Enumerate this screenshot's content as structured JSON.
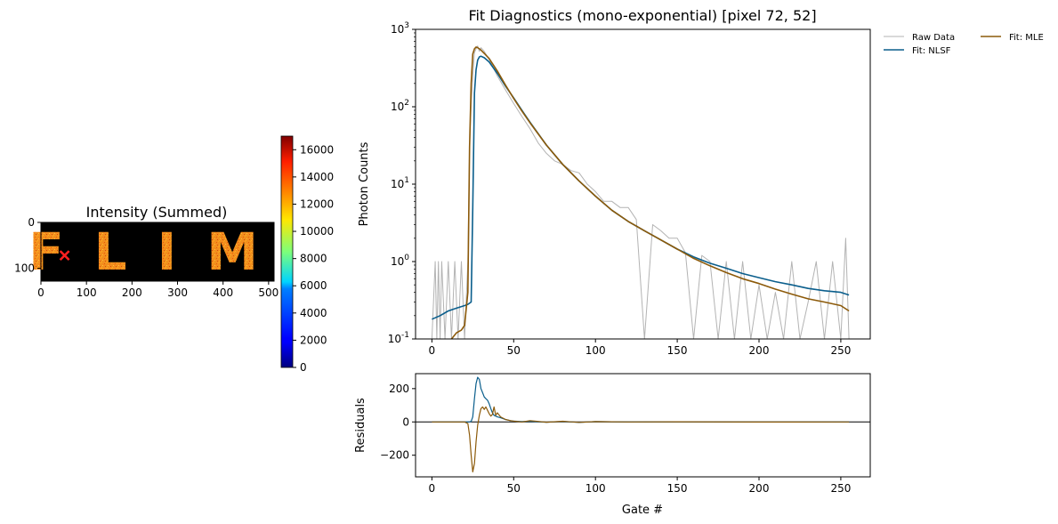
{
  "colors": {
    "raw": "#b3b3b3",
    "nlsf": "#0a5e8c",
    "mle": "#8c5a0a",
    "marker": "#ff2020",
    "letters": "#f08a1c",
    "image_bg": "#000000"
  },
  "chart_data": [
    {
      "type": "heatmap",
      "title": "Intensity (Summed)",
      "image_text": "FLIM",
      "xlim": [
        0,
        512
      ],
      "ylim": [
        128,
        0
      ],
      "xticks": [
        "0",
        "100",
        "200",
        "300",
        "400",
        "500"
      ],
      "yticks": [
        "0",
        "100"
      ],
      "marker": {
        "x": 52,
        "y": 72,
        "symbol": "x"
      },
      "colorbar": {
        "colormap": "jet",
        "range": [
          0,
          17000
        ],
        "ticks": [
          "0",
          "2000",
          "4000",
          "6000",
          "8000",
          "10000",
          "12000",
          "14000",
          "16000"
        ]
      }
    },
    {
      "type": "line",
      "title": "Fit Diagnostics (mono-exponential)  [pixel 72, 52]",
      "xlabel": "",
      "ylabel": "Photon Counts",
      "yscale": "log",
      "xlim": [
        -10,
        268
      ],
      "ylim": [
        0.1,
        1000
      ],
      "xticks": [
        "0",
        "50",
        "100",
        "150",
        "200",
        "250"
      ],
      "yticks": [
        "10^{-1}",
        "10^{0}",
        "10^{1}",
        "10^{2}",
        "10^{3}"
      ],
      "legend": {
        "placement": "outside-top-right",
        "columns": 2
      },
      "series": [
        {
          "name": "Raw Data",
          "x": [
            0,
            2,
            3,
            4,
            5,
            6,
            8,
            10,
            12,
            14,
            16,
            18,
            20,
            22,
            23,
            24,
            25,
            26,
            27,
            28,
            29,
            30,
            32,
            35,
            40,
            45,
            50,
            55,
            60,
            65,
            70,
            75,
            80,
            85,
            90,
            95,
            100,
            105,
            110,
            115,
            120,
            125,
            130,
            135,
            140,
            145,
            150,
            155,
            160,
            165,
            170,
            175,
            180,
            185,
            190,
            195,
            200,
            205,
            210,
            215,
            220,
            225,
            230,
            235,
            240,
            245,
            250,
            253,
            255
          ],
          "y": [
            0.1,
            1,
            0.1,
            1,
            0.1,
            1,
            0.1,
            1,
            0.1,
            1,
            0.1,
            1,
            0.1,
            1,
            30,
            100,
            250,
            500,
            560,
            610,
            520,
            580,
            520,
            410,
            250,
            165,
            110,
            75,
            52,
            34,
            25,
            20,
            18,
            15,
            14,
            10,
            8,
            6,
            6,
            5,
            5,
            3.5,
            0.1,
            3,
            2.5,
            2,
            2,
            1.3,
            0.1,
            1.2,
            1,
            0.1,
            1,
            0.1,
            1,
            0.1,
            0.5,
            0.1,
            0.4,
            0.1,
            1,
            0.1,
            0.3,
            1,
            0.1,
            1,
            0.1,
            2,
            0.1
          ]
        },
        {
          "name": "Fit: NLSF",
          "x": [
            0,
            5,
            10,
            15,
            20,
            22,
            24,
            25,
            26,
            27,
            28,
            29,
            30,
            32,
            35,
            40,
            45,
            50,
            55,
            60,
            70,
            80,
            90,
            100,
            110,
            120,
            130,
            140,
            150,
            160,
            170,
            180,
            190,
            200,
            210,
            220,
            230,
            240,
            250,
            255
          ],
          "y": [
            0.18,
            0.2,
            0.23,
            0.25,
            0.27,
            0.28,
            0.3,
            5,
            150,
            300,
            400,
            440,
            450,
            430,
            380,
            270,
            185,
            130,
            90,
            63,
            32,
            18,
            11,
            7,
            4.6,
            3.3,
            2.5,
            1.9,
            1.45,
            1.15,
            0.95,
            0.82,
            0.7,
            0.62,
            0.55,
            0.5,
            0.45,
            0.42,
            0.4,
            0.37
          ]
        },
        {
          "name": "Fit: MLE",
          "x": [
            12,
            15,
            18,
            20,
            22,
            23,
            24,
            25,
            26,
            27,
            28,
            29,
            30,
            32,
            35,
            40,
            45,
            50,
            55,
            60,
            70,
            80,
            90,
            100,
            110,
            120,
            130,
            140,
            150,
            160,
            170,
            180,
            190,
            200,
            210,
            220,
            230,
            240,
            250,
            255
          ],
          "y": [
            0.1,
            0.12,
            0.13,
            0.15,
            0.4,
            30,
            200,
            480,
            560,
            590,
            580,
            560,
            540,
            490,
            420,
            290,
            190,
            128,
            88,
            62,
            32,
            18,
            11,
            7,
            4.6,
            3.3,
            2.5,
            1.9,
            1.45,
            1.1,
            0.88,
            0.72,
            0.6,
            0.52,
            0.44,
            0.38,
            0.33,
            0.3,
            0.27,
            0.23
          ]
        }
      ]
    },
    {
      "type": "line",
      "title": "",
      "xlabel": "Gate #",
      "ylabel": "Residuals",
      "xlim": [
        -10,
        268
      ],
      "ylim": [
        -330,
        290
      ],
      "xticks": [
        "0",
        "50",
        "100",
        "150",
        "200",
        "250"
      ],
      "yticks": [
        "−200",
        "0",
        "200"
      ],
      "zero_line": true,
      "series": [
        {
          "name": "Fit: NLSF",
          "x": [
            0,
            10,
            20,
            23,
            24,
            25,
            26,
            27,
            28,
            29,
            30,
            31,
            32,
            33,
            34,
            35,
            36,
            37,
            38,
            40,
            42,
            45,
            48,
            50,
            55,
            60,
            70,
            80,
            90,
            100,
            120,
            150,
            200,
            250,
            255
          ],
          "y": [
            0,
            0,
            0,
            1,
            3,
            30,
            140,
            230,
            268,
            255,
            200,
            175,
            150,
            140,
            130,
            110,
            80,
            55,
            40,
            30,
            25,
            15,
            8,
            5,
            2,
            4,
            -2,
            3,
            -3,
            2,
            0,
            1,
            -1,
            0,
            0
          ]
        },
        {
          "name": "Fit: MLE",
          "x": [
            0,
            10,
            20,
            22,
            23,
            24,
            25,
            26,
            27,
            28,
            29,
            30,
            31,
            32,
            33,
            34,
            35,
            36,
            37,
            38,
            39,
            40,
            42,
            45,
            48,
            50,
            55,
            60,
            70,
            80,
            90,
            100,
            120,
            150,
            200,
            250,
            255
          ],
          "y": [
            0,
            0,
            0,
            -10,
            -80,
            -200,
            -300,
            -250,
            -120,
            -20,
            40,
            80,
            90,
            75,
            90,
            70,
            50,
            35,
            45,
            90,
            40,
            55,
            30,
            15,
            8,
            5,
            0,
            8,
            -2,
            4,
            -3,
            2,
            0,
            1,
            -1,
            0,
            0
          ]
        }
      ]
    }
  ]
}
